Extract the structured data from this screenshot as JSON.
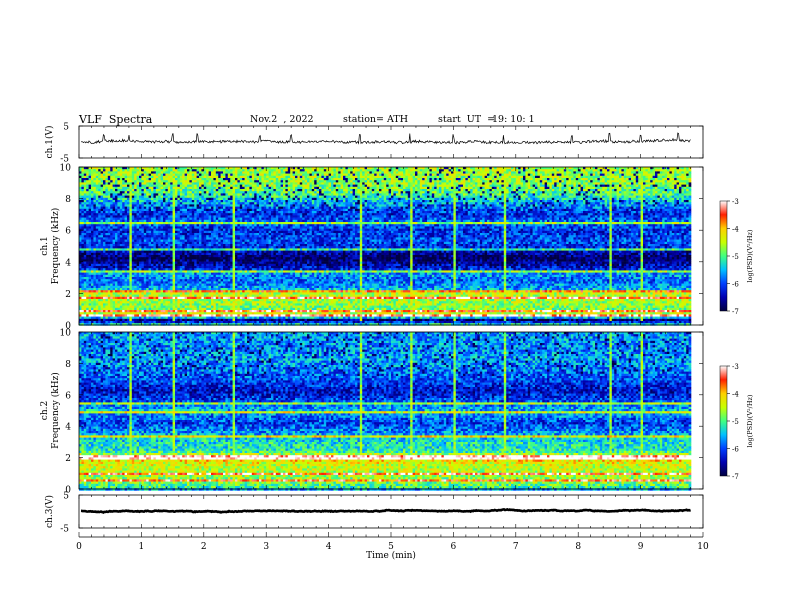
{
  "header": {
    "title": "VLF  Spectra",
    "date": "Nov.2  , 2022",
    "station": "station= ATH",
    "start_ut_label": "start  UT  =",
    "start_ut_value": "19: 10: 1"
  },
  "colors": {
    "waveform": "#000000",
    "spectrogram_scale": [
      "#000040",
      "#0000b0",
      "#0040ff",
      "#00c0ff",
      "#40ff80",
      "#c8ff00",
      "#ffd000",
      "#ff2000",
      "#ffffff"
    ]
  },
  "chart_data": [
    {
      "type": "line",
      "ylabel": "ch.1(V)",
      "ylim": [
        -5,
        5
      ],
      "yticks": [
        {
          "v": 5,
          "t": "5"
        },
        {
          "v": -5,
          "t": "-5"
        }
      ],
      "xlim": [
        0,
        10
      ],
      "summary": "noisy waveform centred near 0 V, amplitude roughly ±1 V, with occasional spikes up to about +2 V",
      "baseline_v": 0.1,
      "amplitude_v": 0.9,
      "spike_times_min": [
        0.4,
        0.8,
        1.5,
        1.9,
        2.9,
        3.4,
        4.5,
        5.3,
        6.0,
        6.8,
        7.9,
        8.5,
        9.0,
        9.6
      ]
    },
    {
      "type": "heatmap",
      "name": "ch.1 spectrogram",
      "ylabel": "Frequency  (kHz)",
      "ylabel_channel": "ch.1",
      "ylim": [
        0,
        10
      ],
      "yticks": [
        {
          "v": 0,
          "t": "0"
        },
        {
          "v": 2,
          "t": "2"
        },
        {
          "v": 4,
          "t": "4"
        },
        {
          "v": 6,
          "t": "6"
        },
        {
          "v": 8,
          "t": "8"
        },
        {
          "v": 10,
          "t": "10"
        }
      ],
      "xlim": [
        0,
        9.8
      ],
      "colorbar": {
        "label": "log(PSD)(V²/Hz)",
        "range": [
          -7,
          -3
        ],
        "ticks": [
          {
            "v": -3,
            "t": "-3"
          },
          {
            "v": -4,
            "t": "-4"
          },
          {
            "v": -5,
            "t": "-5"
          },
          {
            "v": -6,
            "t": "-6"
          },
          {
            "v": -7,
            "t": "-7"
          }
        ]
      },
      "psd_profile_by_khz": [
        {
          "f": 0.0,
          "psd": -5.0
        },
        {
          "f": 0.3,
          "psd": -6.9
        },
        {
          "f": 0.6,
          "psd": -4.3
        },
        {
          "f": 1.0,
          "psd": -4.8
        },
        {
          "f": 1.5,
          "psd": -4.6
        },
        {
          "f": 2.0,
          "psd": -4.5
        },
        {
          "f": 2.3,
          "psd": -5.6
        },
        {
          "f": 2.8,
          "psd": -5.9
        },
        {
          "f": 3.2,
          "psd": -5.6
        },
        {
          "f": 3.6,
          "psd": -6.3
        },
        {
          "f": 4.2,
          "psd": -6.9
        },
        {
          "f": 4.8,
          "psd": -6.3
        },
        {
          "f": 5.3,
          "psd": -6.0
        },
        {
          "f": 6.0,
          "psd": -6.2
        },
        {
          "f": 6.5,
          "psd": -5.8
        },
        {
          "f": 7.0,
          "psd": -6.2
        },
        {
          "f": 7.7,
          "psd": -5.6
        },
        {
          "f": 8.3,
          "psd": -5.0
        },
        {
          "f": 9.0,
          "psd": -4.7
        },
        {
          "f": 10.0,
          "psd": -4.6
        }
      ],
      "bright_lines_khz": [
        0.55,
        0.85,
        1.75,
        2.2,
        3.45,
        4.75,
        6.45
      ],
      "broadband_events_min": [
        0.4,
        0.8,
        1.5,
        1.9,
        2.45,
        2.9,
        3.4,
        4.5,
        5.3,
        6.0,
        6.8,
        7.9,
        8.5,
        9.0,
        9.6
      ]
    },
    {
      "type": "heatmap",
      "name": "ch.2 spectrogram",
      "ylabel": "Frequency  (kHz)",
      "ylabel_channel": "ch.2",
      "ylim": [
        0,
        10
      ],
      "yticks": [
        {
          "v": 0,
          "t": "0"
        },
        {
          "v": 2,
          "t": "2"
        },
        {
          "v": 4,
          "t": "4"
        },
        {
          "v": 6,
          "t": "6"
        },
        {
          "v": 8,
          "t": "8"
        },
        {
          "v": 10,
          "t": "10"
        }
      ],
      "xlim": [
        0,
        9.8
      ],
      "colorbar": {
        "label": "log(PSD)(V²/Hz)",
        "range": [
          -7,
          -3
        ],
        "ticks": [
          {
            "v": -3,
            "t": "-3"
          },
          {
            "v": -4,
            "t": "-4"
          },
          {
            "v": -5,
            "t": "-5"
          },
          {
            "v": -6,
            "t": "-6"
          },
          {
            "v": -7,
            "t": "-7"
          }
        ]
      },
      "psd_profile_by_khz": [
        {
          "f": 0.0,
          "psd": -5.2
        },
        {
          "f": 0.4,
          "psd": -4.8
        },
        {
          "f": 1.0,
          "psd": -4.6
        },
        {
          "f": 1.6,
          "psd": -4.4
        },
        {
          "f": 2.0,
          "psd": -3.9
        },
        {
          "f": 2.4,
          "psd": -5.2
        },
        {
          "f": 3.0,
          "psd": -5.3
        },
        {
          "f": 3.5,
          "psd": -5.6
        },
        {
          "f": 4.2,
          "psd": -6.1
        },
        {
          "f": 5.0,
          "psd": -5.5
        },
        {
          "f": 5.6,
          "psd": -6.0
        },
        {
          "f": 6.2,
          "psd": -6.4
        },
        {
          "f": 6.8,
          "psd": -6.1
        },
        {
          "f": 7.5,
          "psd": -5.8
        },
        {
          "f": 8.3,
          "psd": -5.6
        },
        {
          "f": 9.0,
          "psd": -5.7
        },
        {
          "f": 10.0,
          "psd": -5.6
        }
      ],
      "bright_lines_khz": [
        0.6,
        1.0,
        1.9,
        2.05,
        3.3,
        4.9,
        5.4
      ],
      "broadband_events_min": [
        0.4,
        0.8,
        1.5,
        1.9,
        2.45,
        2.9,
        3.4,
        4.5,
        5.3,
        6.0,
        6.8,
        7.9,
        8.5,
        9.0,
        9.6
      ]
    },
    {
      "type": "line",
      "ylabel": "ch.3(V)",
      "ylim": [
        -5,
        5
      ],
      "yticks": [
        {
          "v": 5,
          "t": "5"
        },
        {
          "v": -5,
          "t": "-5"
        }
      ],
      "xlim": [
        0,
        10
      ],
      "summary": "flat, thick trace at about 0.2 V",
      "baseline_v": 0.2,
      "amplitude_v": 0.15
    }
  ],
  "time_axis": {
    "label": "Time  (min)",
    "range": [
      0,
      10
    ],
    "ticks": [
      {
        "v": 0,
        "t": "0"
      },
      {
        "v": 1,
        "t": "1"
      },
      {
        "v": 2,
        "t": "2"
      },
      {
        "v": 3,
        "t": "3"
      },
      {
        "v": 4,
        "t": "4"
      },
      {
        "v": 5,
        "t": "5"
      },
      {
        "v": 6,
        "t": "6"
      },
      {
        "v": 7,
        "t": "7"
      },
      {
        "v": 8,
        "t": "8"
      },
      {
        "v": 9,
        "t": "9"
      },
      {
        "v": 10,
        "t": "10"
      }
    ]
  }
}
